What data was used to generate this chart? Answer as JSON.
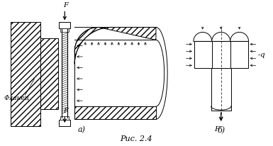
{
  "title": "Рис. 2.4",
  "label_a": "а)",
  "label_b": "б)",
  "label_flanets": "Фланец",
  "label_F": "F",
  "label_q": "q",
  "bg_color": "#ffffff",
  "line_color": "#000000",
  "fig_width": 3.85,
  "fig_height": 2.06,
  "dpi": 100
}
